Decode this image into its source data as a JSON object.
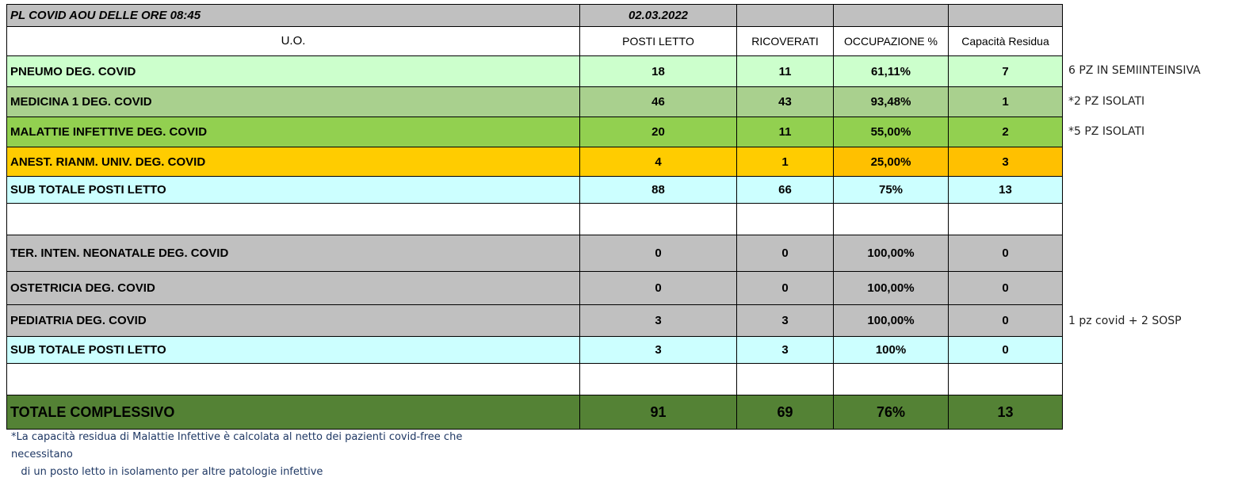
{
  "title": "PL COVID AOU DELLE ORE 08:45",
  "date": "02.03.2022",
  "headers": {
    "uo": "U.O.",
    "posti": "POSTI LETTO",
    "ricoverati": "RICOVERATI",
    "occupazione": "OCCUPAZIONE %",
    "capacita": "Capacità Residua"
  },
  "rows": [
    {
      "name": "PNEUMO  DEG. COVID",
      "posti": "18",
      "ricoverati": "11",
      "occupazione": "61,11%",
      "capacita": "7",
      "note": "6 PZ IN SEMIINTEINSIVA"
    },
    {
      "name": "MEDICINA 1 DEG. COVID",
      "posti": "46",
      "ricoverati": "43",
      "occupazione": "93,48%",
      "capacita": "1",
      "note": "*2 PZ  ISOLATI"
    },
    {
      "name": "MALATTIE INFETTIVE  DEG. COVID",
      "posti": "20",
      "ricoverati": "11",
      "occupazione": "55,00%",
      "capacita": "2",
      "note": "*5 PZ  ISOLATI"
    },
    {
      "name": "ANEST. RIANM. UNIV. DEG. COVID",
      "posti": "4",
      "ricoverati": "1",
      "occupazione": "25,00%",
      "capacita": "3"
    },
    {
      "name": "SUB TOTALE POSTI LETTO",
      "posti": "88",
      "ricoverati": "66",
      "occupazione": "75%",
      "capacita": "13"
    },
    {
      "name": "TER. INTEN. NEONATALE DEG. COVID",
      "posti": "0",
      "ricoverati": "0",
      "occupazione": "100,00%",
      "capacita": "0"
    },
    {
      "name": "OSTETRICIA DEG.  COVID",
      "posti": "0",
      "ricoverati": "0",
      "occupazione": "100,00%",
      "capacita": "0"
    },
    {
      "name": "PEDIATRIA DEG.  COVID",
      "posti": "3",
      "ricoverati": "3",
      "occupazione": "100,00%",
      "capacita": "0",
      "note": "1 pz covid + 2 SOSP"
    },
    {
      "name": "SUB TOTALE POSTI LETTO",
      "posti": "3",
      "ricoverati": "3",
      "occupazione": "100%",
      "capacita": "0"
    },
    {
      "name": "TOTALE  COMPLESSIVO",
      "posti": "91",
      "ricoverati": "69",
      "occupazione": "76%",
      "capacita": "13"
    }
  ],
  "footnote": [
    "*La capacità residua di Malattie Infettive è calcolata al netto dei pazienti covid-free che",
    "necessitano",
    "   di un posto letto in isolamento per altre patologie infettive"
  ],
  "colors": {
    "pneumo": "#ccffcc",
    "medicina": "#a9d08e",
    "malattie": "#92d050",
    "anest": "#ffcc00",
    "subtotale": "#ccffff",
    "grey": "#c0c0c0",
    "totale": "#548235"
  }
}
